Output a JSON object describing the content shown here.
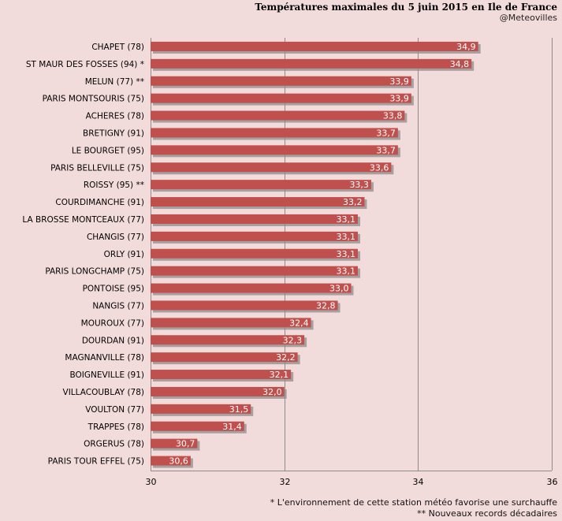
{
  "header": {
    "title": "Températures maximales du 5 juin 2015 en Ile de France",
    "subtitle": "@Meteovilles"
  },
  "footnotes": [
    "* L'environnement de cette station météo favorise une surchauffe",
    "** Nouveaux records décadaires"
  ],
  "colors": {
    "background": "#f2dcdb",
    "bar": "#c0504d",
    "shadow": "#8c8c8c",
    "grid": "#8c8c8c"
  },
  "chart_data": {
    "type": "bar",
    "orientation": "horizontal",
    "title": "Températures maximales du 5 juin 2015 en Ile de France",
    "xlim": [
      30,
      36
    ],
    "xticks": [
      "30",
      "32",
      "34",
      "36"
    ],
    "grid": true,
    "categories": [
      "CHAPET (78)",
      "ST MAUR DES FOSSES (94) *",
      "MELUN (77) **",
      "PARIS MONTSOURIS (75)",
      "ACHERES (78)",
      "BRETIGNY (91)",
      "LE BOURGET (95)",
      "PARIS BELLEVILLE (75)",
      "ROISSY (95) **",
      "COURDIMANCHE (91)",
      "LA BROSSE MONTCEAUX (77)",
      "CHANGIS (77)",
      "ORLY (91)",
      "PARIS LONGCHAMP (75)",
      "PONTOISE (95)",
      "NANGIS (77)",
      "MOUROUX (77)",
      "DOURDAN (91)",
      "MAGNANVILLE (78)",
      "BOIGNEVILLE (91)",
      "VILLACOUBLAY (78)",
      "VOULTON (77)",
      "TRAPPES (78)",
      "ORGERUS (78)",
      "PARIS TOUR EFFEL (75)"
    ],
    "values": [
      34.9,
      34.8,
      33.9,
      33.9,
      33.8,
      33.7,
      33.7,
      33.6,
      33.3,
      33.2,
      33.1,
      33.1,
      33.1,
      33.1,
      33.0,
      32.8,
      32.4,
      32.3,
      32.2,
      32.1,
      32.0,
      31.5,
      31.4,
      30.7,
      30.6
    ],
    "value_labels": [
      "34,9",
      "34,8",
      "33,9",
      "33,9",
      "33,8",
      "33,7",
      "33,7",
      "33,6",
      "33,3",
      "33,2",
      "33,1",
      "33,1",
      "33,1",
      "33,1",
      "33,0",
      "32,8",
      "32,4",
      "32,3",
      "32,2",
      "32,1",
      "32,0",
      "31,5",
      "31,4",
      "30,7",
      "30,6"
    ]
  }
}
